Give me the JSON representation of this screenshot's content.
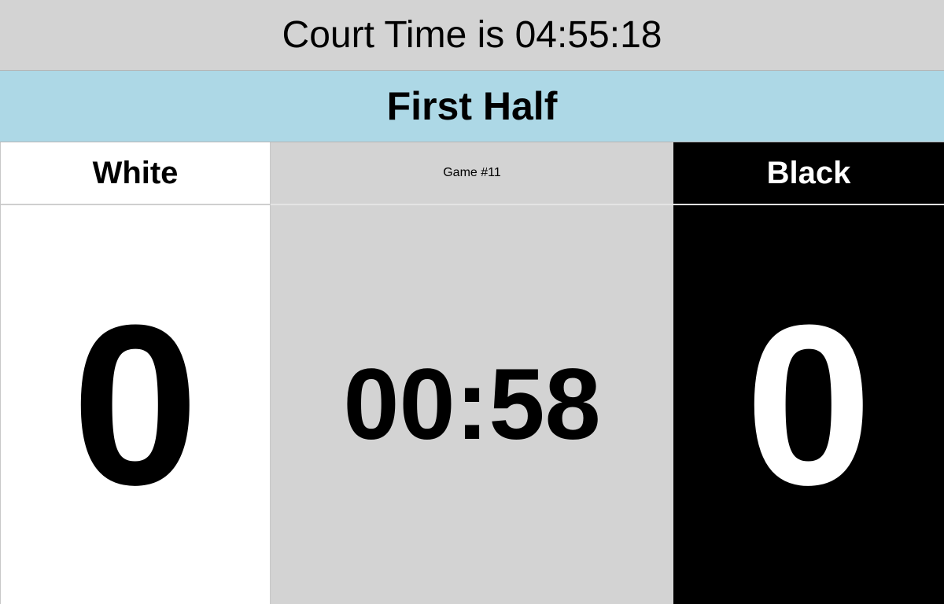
{
  "court_time_text": "Court Time is 04:55:18",
  "period": "First Half",
  "game": {
    "label": "Game #11",
    "clock": "00:58"
  },
  "home": {
    "name": "White",
    "score": "0"
  },
  "away": {
    "name": "Black",
    "score": "0"
  },
  "colors": {
    "court_bar": "#d3d3d3",
    "period_bar": "#add8e6",
    "home_bg": "#ffffff",
    "center_bg": "#d3d3d3",
    "away_bg": "#000000"
  }
}
